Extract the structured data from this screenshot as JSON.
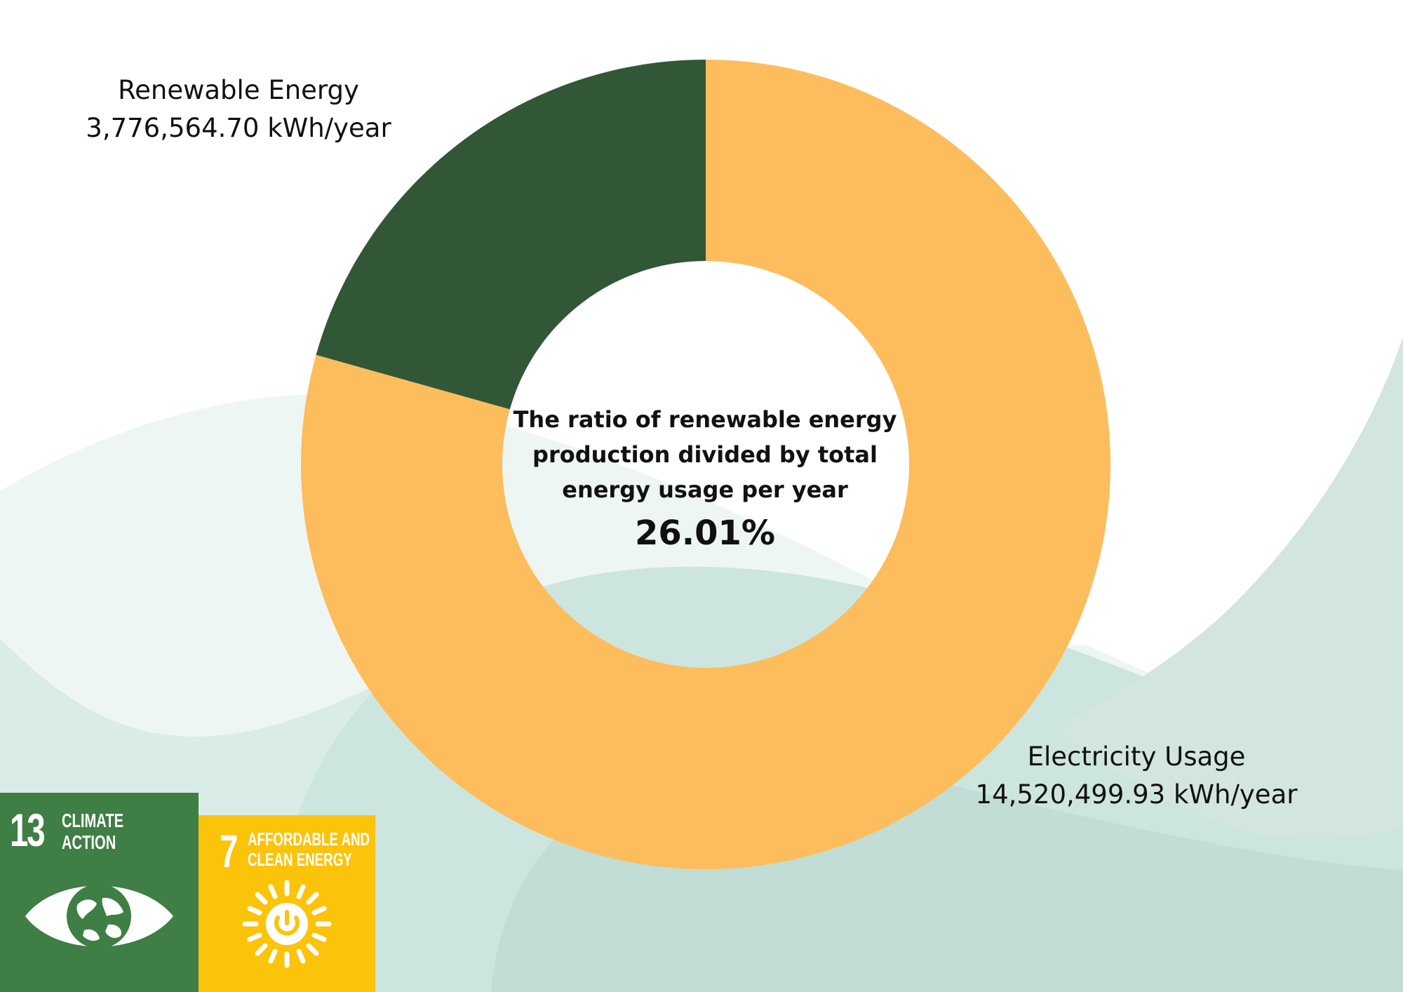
{
  "chart_data": {
    "type": "pie",
    "donut": true,
    "slices": [
      {
        "label": "Renewable Energy",
        "value": 3776564.7,
        "value_text": "3,776,564.70 kWh/year",
        "color": "#325736"
      },
      {
        "label": "Electricity Usage",
        "value": 14520499.93,
        "value_text": "14,520,499.93 kWh/year",
        "color": "#fdbd5c"
      }
    ],
    "center_caption": [
      "The ratio of renewable energy",
      "production divided by total",
      "energy usage per year"
    ],
    "center_value": "26.01%"
  },
  "badges": [
    {
      "number": "13",
      "title_line1": "CLIMATE",
      "title_line2": "ACTION",
      "color": "#3f7e44",
      "icon": "eye-globe-icon"
    },
    {
      "number": "7",
      "title_line1": "AFFORDABLE AND",
      "title_line2": "CLEAN ENERGY",
      "color": "#fcc30b",
      "icon": "sun-power-icon"
    }
  ],
  "background_colors": {
    "wave_light": "#eef6f4",
    "wave_mid": "#d8ebe6",
    "wave_dark": "#c7e2dc",
    "wave_right": "#d3e5e0"
  }
}
